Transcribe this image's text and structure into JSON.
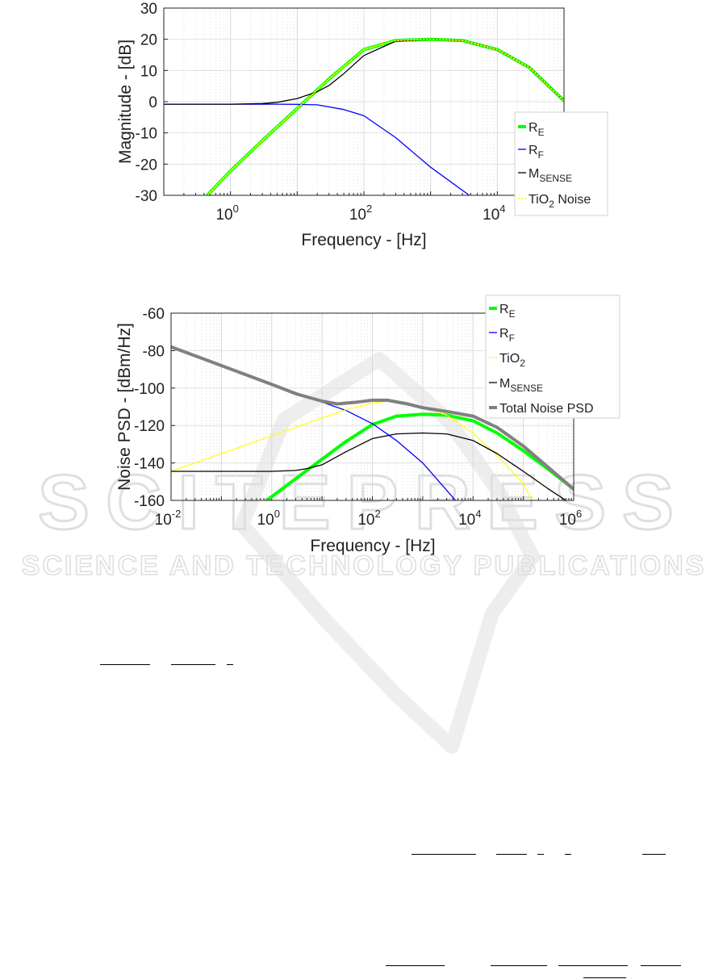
{
  "chart_data": [
    {
      "type": "line",
      "xlabel": "Frequency - [Hz]",
      "ylabel": "Magnitude - [dB]",
      "xscale": "log",
      "xlim": [
        0.1,
        100000
      ],
      "ylim": [
        -30,
        30
      ],
      "yticks": [
        -30,
        -20,
        -10,
        0,
        10,
        20,
        30
      ],
      "xticks": [
        {
          "value": 1,
          "base": "10",
          "exp": "0"
        },
        {
          "value": 100,
          "base": "10",
          "exp": "2"
        },
        {
          "value": 10000,
          "base": "10",
          "exp": "4"
        }
      ],
      "grid": true,
      "legend_position": "bottom-right",
      "series": [
        {
          "name": "R",
          "sub": "E",
          "color": "#00ff00",
          "style": "solid-thick",
          "x": [
            0.45,
            1,
            3,
            10,
            30,
            100,
            300,
            1000,
            3000,
            10000,
            30000,
            100000
          ],
          "y": [
            -30,
            -22.2,
            -12.5,
            -2.2,
            7.3,
            16.7,
            19.6,
            20,
            19.6,
            16.7,
            11,
            0.3
          ]
        },
        {
          "name": "R",
          "sub": "F",
          "color": "#0000ff",
          "style": "solid",
          "x": [
            0.1,
            1,
            5,
            10,
            20,
            50,
            100,
            300,
            1000,
            3800
          ],
          "y": [
            -0.8,
            -0.8,
            -0.8,
            -0.85,
            -1,
            -2.5,
            -4.5,
            -11.5,
            -21,
            -30
          ]
        },
        {
          "name": "M",
          "sub": "SENSE",
          "color": "#000000",
          "style": "solid",
          "x": [
            0.1,
            1,
            3,
            5,
            10,
            20,
            30,
            50,
            100,
            300,
            1000,
            3000,
            10000,
            30000,
            100000
          ],
          "y": [
            -0.8,
            -0.8,
            -0.6,
            -0.2,
            1,
            3.2,
            5.2,
            9,
            14.8,
            19.4,
            20,
            19.6,
            16.7,
            11,
            0.3
          ]
        },
        {
          "name": "TiO",
          "sub": "2",
          "suffix": " Noise",
          "color": "#ffff00",
          "style": "dotted",
          "x": [
            0.45,
            1,
            3,
            10,
            30,
            100,
            300,
            1000,
            3000,
            10000,
            30000,
            100000
          ],
          "y": [
            -30,
            -22.2,
            -12.5,
            -2.2,
            7.3,
            16.7,
            19.6,
            20,
            19.6,
            16.7,
            11,
            0.3
          ]
        }
      ]
    },
    {
      "type": "line",
      "xlabel": "Frequency - [Hz]",
      "ylabel": "Noise PSD - [dBm/Hz]",
      "xscale": "log",
      "xlim": [
        0.01,
        1000000
      ],
      "ylim": [
        -160,
        -60
      ],
      "yticks": [
        -160,
        -140,
        -120,
        -100,
        -80,
        -60
      ],
      "xticks": [
        {
          "value": 0.01,
          "base": "10",
          "exp": "-2"
        },
        {
          "value": 1,
          "base": "10",
          "exp": "0"
        },
        {
          "value": 100,
          "base": "10",
          "exp": "2"
        },
        {
          "value": 10000,
          "base": "10",
          "exp": "4"
        },
        {
          "value": 1000000,
          "base": "10",
          "exp": "6"
        }
      ],
      "grid": true,
      "legend_position": "top-right",
      "series": [
        {
          "name": "R",
          "sub": "E",
          "color": "#00ff00",
          "style": "solid-thick",
          "x": [
            0.8,
            2,
            5,
            10,
            30,
            100,
            300,
            1000,
            3000,
            10000,
            30000,
            100000,
            300000,
            1000000
          ],
          "y": [
            -160,
            -152,
            -144,
            -138,
            -128.5,
            -119.5,
            -115,
            -114,
            -114.5,
            -117.5,
            -124,
            -133.5,
            -143,
            -154
          ]
        },
        {
          "name": "R",
          "sub": "F",
          "color": "#0000ff",
          "style": "solid",
          "x": [
            0.01,
            0.1,
            1,
            5,
            10,
            30,
            100,
            300,
            1000,
            4500
          ],
          "y": [
            -78,
            -88,
            -98,
            -104.5,
            -107.5,
            -112,
            -119,
            -128,
            -140,
            -160
          ]
        },
        {
          "name": "TiO",
          "sub": "2",
          "color": "#ffff00",
          "style": "dotted",
          "x": [
            0.01,
            0.1,
            1,
            10,
            30,
            100,
            200,
            1000,
            3000,
            10000,
            30000,
            100000,
            150000
          ],
          "y": [
            -144.5,
            -135,
            -125.5,
            -116,
            -111.5,
            -108,
            -107,
            -110,
            -114.5,
            -124,
            -136,
            -151,
            -160
          ]
        },
        {
          "name": "M",
          "sub": "SENSE",
          "color": "#000000",
          "style": "solid",
          "x": [
            0.01,
            1,
            3,
            5,
            10,
            30,
            100,
            300,
            1000,
            3000,
            10000,
            30000,
            100000,
            300000,
            700000
          ],
          "y": [
            -144.5,
            -144.5,
            -144,
            -143,
            -141,
            -134,
            -127,
            -124.5,
            -124,
            -124.5,
            -128,
            -135,
            -144.5,
            -153.5,
            -160
          ]
        },
        {
          "name": "Total Noise PSD",
          "color": "#808080",
          "style": "solid-thick",
          "x": [
            0.01,
            0.1,
            1,
            3,
            10,
            20,
            50,
            100,
            200,
            500,
            1000,
            3000,
            10000,
            30000,
            100000,
            300000,
            1000000
          ],
          "y": [
            -78,
            -88,
            -98,
            -103,
            -107,
            -108.5,
            -107.5,
            -106.5,
            -106.5,
            -108.5,
            -110.5,
            -112.5,
            -115,
            -121,
            -131,
            -142,
            -154
          ]
        }
      ]
    }
  ],
  "watermark": {
    "main": "SCITEPRESS",
    "sub": "SCIENCE AND TECHNOLOGY PUBLICATIONS"
  }
}
